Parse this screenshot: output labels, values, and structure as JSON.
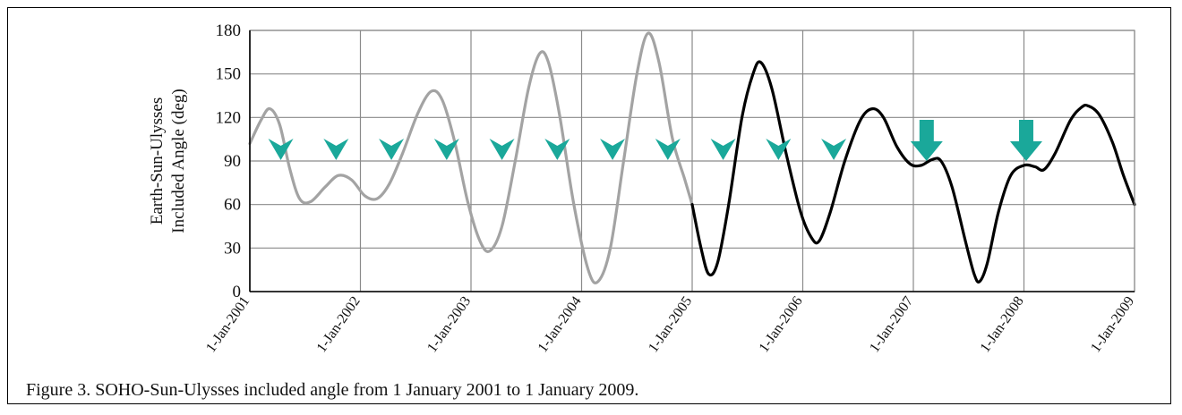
{
  "caption": "Figure 3. SOHO-Sun-Ulysses included angle from 1 January 2001 to 1 January 2009.",
  "colors": {
    "grid": "#8a8a8a",
    "series_gray": "#a3a3a3",
    "series_black": "#000000",
    "marker_teal": "#1aa89a",
    "axis": "#000000"
  },
  "chart_data": {
    "type": "line",
    "title": "",
    "xlabel": "",
    "ylabel_lines": [
      "Earth-Sun-Ulysses",
      "Included Angle (deg)"
    ],
    "ylim": [
      0,
      180
    ],
    "xlim": [
      2001.0,
      2009.0
    ],
    "y_ticks": [
      0,
      30,
      60,
      90,
      120,
      150,
      180
    ],
    "x_tick_labels": [
      "1-Jan-2001",
      "1-Jan-2002",
      "1-Jan-2003",
      "1-Jan-2004",
      "1-Jan-2005",
      "1-Jan-2006",
      "1-Jan-2007",
      "1-Jan-2008",
      "1-Jan-2009"
    ],
    "grid": true,
    "series": [
      {
        "color": "gray",
        "points": [
          [
            2001.0,
            102
          ],
          [
            2001.1,
            118
          ],
          [
            2001.18,
            126
          ],
          [
            2001.27,
            115
          ],
          [
            2001.36,
            85
          ],
          [
            2001.45,
            64
          ],
          [
            2001.55,
            62
          ],
          [
            2001.68,
            72
          ],
          [
            2001.8,
            80
          ],
          [
            2001.92,
            77
          ],
          [
            2002.04,
            66
          ],
          [
            2002.15,
            64
          ],
          [
            2002.26,
            74
          ],
          [
            2002.38,
            95
          ],
          [
            2002.52,
            123
          ],
          [
            2002.64,
            138
          ],
          [
            2002.74,
            132
          ],
          [
            2002.85,
            104
          ],
          [
            2002.97,
            62
          ],
          [
            2003.08,
            35
          ],
          [
            2003.17,
            28
          ],
          [
            2003.28,
            45
          ],
          [
            2003.4,
            90
          ],
          [
            2003.52,
            140
          ],
          [
            2003.62,
            164
          ],
          [
            2003.7,
            158
          ],
          [
            2003.8,
            122
          ],
          [
            2003.93,
            60
          ],
          [
            2004.06,
            15
          ],
          [
            2004.15,
            7
          ],
          [
            2004.26,
            30
          ],
          [
            2004.38,
            90
          ],
          [
            2004.5,
            150
          ],
          [
            2004.6,
            178
          ],
          [
            2004.7,
            158
          ],
          [
            2004.82,
            106
          ],
          [
            2004.93,
            78
          ],
          [
            2005.0,
            60
          ]
        ]
      },
      {
        "color": "black",
        "points": [
          [
            2005.0,
            60
          ],
          [
            2005.08,
            30
          ],
          [
            2005.15,
            12
          ],
          [
            2005.23,
            20
          ],
          [
            2005.33,
            60
          ],
          [
            2005.45,
            120
          ],
          [
            2005.55,
            150
          ],
          [
            2005.62,
            158
          ],
          [
            2005.72,
            140
          ],
          [
            2005.85,
            95
          ],
          [
            2005.98,
            55
          ],
          [
            2006.08,
            37
          ],
          [
            2006.15,
            35
          ],
          [
            2006.25,
            55
          ],
          [
            2006.38,
            90
          ],
          [
            2006.52,
            118
          ],
          [
            2006.63,
            126
          ],
          [
            2006.73,
            120
          ],
          [
            2006.85,
            100
          ],
          [
            2006.97,
            88
          ],
          [
            2007.07,
            87
          ],
          [
            2007.17,
            91
          ],
          [
            2007.25,
            90
          ],
          [
            2007.35,
            72
          ],
          [
            2007.47,
            35
          ],
          [
            2007.55,
            12
          ],
          [
            2007.6,
            7
          ],
          [
            2007.67,
            20
          ],
          [
            2007.77,
            55
          ],
          [
            2007.88,
            80
          ],
          [
            2008.0,
            87
          ],
          [
            2008.1,
            86
          ],
          [
            2008.18,
            84
          ],
          [
            2008.28,
            95
          ],
          [
            2008.42,
            118
          ],
          [
            2008.52,
            127
          ],
          [
            2008.58,
            128
          ],
          [
            2008.68,
            122
          ],
          [
            2008.8,
            103
          ],
          [
            2008.9,
            80
          ],
          [
            2009.0,
            60
          ]
        ]
      }
    ],
    "markers": {
      "chevrons": [
        {
          "x": 2001.28,
          "y": 98
        },
        {
          "x": 2001.78,
          "y": 98
        },
        {
          "x": 2002.28,
          "y": 98
        },
        {
          "x": 2002.78,
          "y": 98
        },
        {
          "x": 2003.28,
          "y": 98
        },
        {
          "x": 2003.78,
          "y": 98
        },
        {
          "x": 2004.28,
          "y": 98
        },
        {
          "x": 2004.78,
          "y": 98
        },
        {
          "x": 2005.28,
          "y": 98
        },
        {
          "x": 2005.78,
          "y": 98
        },
        {
          "x": 2006.28,
          "y": 98
        }
      ],
      "arrows": [
        {
          "x": 2007.12,
          "y": 90
        },
        {
          "x": 2008.02,
          "y": 90
        }
      ]
    }
  }
}
